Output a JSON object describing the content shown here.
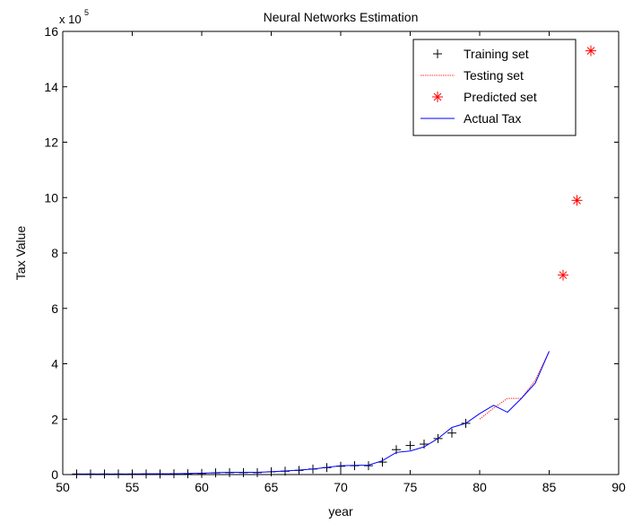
{
  "chart_data": {
    "type": "line",
    "title": "Neural Networks Estimation",
    "xlabel": "year",
    "ylabel": "Tax Value",
    "y_multiplier_label": "x 10",
    "y_multiplier_exponent": "5",
    "xlim": [
      50,
      90
    ],
    "ylim": [
      0,
      16
    ],
    "xticks": [
      "50",
      "55",
      "60",
      "65",
      "70",
      "75",
      "80",
      "85",
      "90"
    ],
    "yticks": [
      "0",
      "2",
      "4",
      "6",
      "8",
      "10",
      "12",
      "14",
      "16"
    ],
    "grid": false,
    "legend_position": "top-right",
    "series": [
      {
        "name": "Training set",
        "kind": "marker-plus",
        "color": "#000000",
        "x": [
          51,
          52,
          53,
          54,
          55,
          56,
          57,
          58,
          59,
          60,
          61,
          62,
          63,
          64,
          65,
          66,
          67,
          68,
          69,
          70,
          71,
          72,
          73,
          74,
          75,
          76,
          77,
          78,
          79
        ],
        "y": [
          0.02,
          0.02,
          0.02,
          0.02,
          0.02,
          0.02,
          0.02,
          0.03,
          0.03,
          0.04,
          0.06,
          0.07,
          0.07,
          0.07,
          0.1,
          0.12,
          0.15,
          0.2,
          0.25,
          0.3,
          0.32,
          0.32,
          0.45,
          0.9,
          1.05,
          1.1,
          1.3,
          1.5,
          1.85
        ]
      },
      {
        "name": "Testing set",
        "kind": "line-dotted",
        "color": "#ff3333",
        "x": [
          80,
          81,
          82,
          83,
          84,
          85
        ],
        "y": [
          2.0,
          2.4,
          2.75,
          2.75,
          3.4,
          4.45
        ]
      },
      {
        "name": "Predicted set",
        "kind": "marker-star",
        "color": "#ff0000",
        "x": [
          86,
          87,
          88
        ],
        "y": [
          7.2,
          9.9,
          15.3
        ]
      },
      {
        "name": "Actual Tax",
        "kind": "line",
        "color": "#0000ff",
        "x": [
          51,
          52,
          53,
          54,
          55,
          56,
          57,
          58,
          59,
          60,
          61,
          62,
          63,
          64,
          65,
          66,
          67,
          68,
          69,
          70,
          71,
          72,
          73,
          74,
          75,
          76,
          77,
          78,
          79,
          80,
          81,
          82,
          83,
          84,
          85
        ],
        "y": [
          0.02,
          0.02,
          0.02,
          0.02,
          0.02,
          0.03,
          0.03,
          0.03,
          0.04,
          0.05,
          0.07,
          0.08,
          0.08,
          0.08,
          0.1,
          0.13,
          0.16,
          0.2,
          0.26,
          0.32,
          0.33,
          0.34,
          0.5,
          0.8,
          0.85,
          1.0,
          1.3,
          1.7,
          1.85,
          2.2,
          2.5,
          2.25,
          2.75,
          3.3,
          4.45
        ]
      }
    ]
  }
}
